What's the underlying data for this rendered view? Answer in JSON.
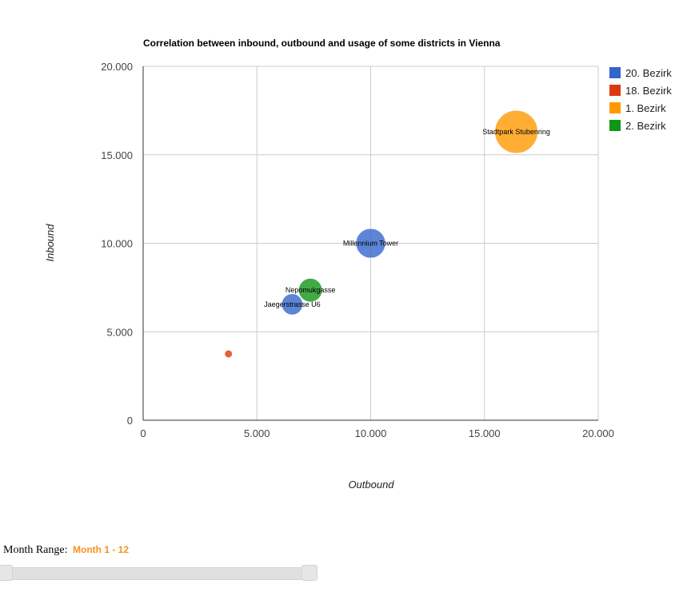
{
  "chart_data": {
    "type": "bubble",
    "title": "Correlation between inbound, outbound and usage of some districts in Vienna",
    "xlabel": "Outbound",
    "ylabel": "Inbound",
    "xlim": [
      0,
      20000
    ],
    "ylim": [
      0,
      20000
    ],
    "x_ticks": [
      "0",
      "5.000",
      "10.000",
      "15.000",
      "20.000"
    ],
    "y_ticks": [
      "0",
      "5.000",
      "10.000",
      "15.000",
      "20.000"
    ],
    "grid": true,
    "legend_position": "right",
    "series": [
      {
        "name": "20. Bezirk",
        "color": "#3366cc"
      },
      {
        "name": "18. Bezirk",
        "color": "#dc3912"
      },
      {
        "name": "1. Bezirk",
        "color": "#ff9900"
      },
      {
        "name": "2. Bezirk",
        "color": "#109618"
      }
    ],
    "points": [
      {
        "label": "Stadtpark Stubenring",
        "series": "1. Bezirk",
        "x": 16400,
        "y": 16300,
        "size": 1.0
      },
      {
        "label": "Millennium Tower",
        "series": "20. Bezirk",
        "x": 10000,
        "y": 10000,
        "size": 0.62
      },
      {
        "label": "Nepomukgasse",
        "series": "2. Bezirk",
        "x": 7350,
        "y": 7350,
        "size": 0.45
      },
      {
        "label": "Jaegerstrasse U6",
        "series": "20. Bezirk",
        "x": 6550,
        "y": 6550,
        "size": 0.38
      },
      {
        "label": "",
        "series": "18. Bezirk",
        "x": 3750,
        "y": 3750,
        "size": 0.0
      }
    ]
  },
  "controls": {
    "range_label": "Month Range:",
    "range_value": "Month 1 - 12",
    "range_min": 1,
    "range_max": 12
  }
}
